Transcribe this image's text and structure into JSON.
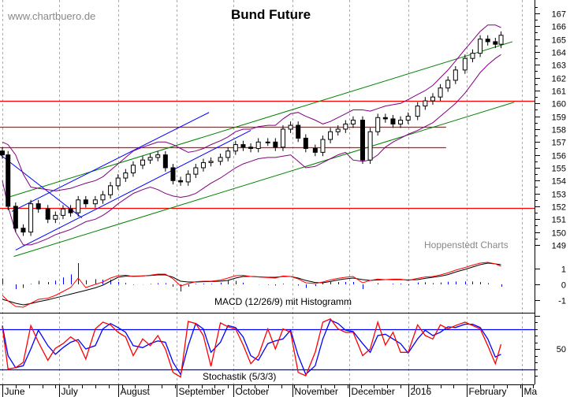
{
  "header": {
    "title": "Bund Future",
    "watermark": "www.chartbuero.de",
    "credit": "Hoppenstedt Charts"
  },
  "colors": {
    "candle": "#000000",
    "bands": "#800080",
    "trend_green": "#008000",
    "trend_blue": "#0000ff",
    "horizontal_red": "#ff0000",
    "macd": "#ff0000",
    "signal": "#000000",
    "histogram": "#0000ff",
    "stoch_k": "#ff0000",
    "stoch_d": "#0000ff",
    "grid": "#aaaaaa"
  },
  "chart_data": [
    {
      "type": "candlestick",
      "title": "Bund Future",
      "ylim": [
        148,
        167.5
      ],
      "y_ticks": [
        "167",
        "166",
        "165",
        "164",
        "163",
        "162",
        "161",
        "160",
        "159",
        "158",
        "157",
        "156",
        "155",
        "154",
        "153",
        "152",
        "151",
        "150",
        "149"
      ],
      "x_months": [
        "June",
        "July",
        "August",
        "September",
        "October",
        "November",
        "December",
        "2016",
        "February",
        "Ma"
      ],
      "grid": "vertical dashed at month starts",
      "dates": [
        "2015-06-01",
        "2015-06-04",
        "2015-06-08",
        "2015-06-12",
        "2015-06-16",
        "2015-06-20",
        "2015-06-25",
        "2015-06-29",
        "2015-07-03",
        "2015-07-07",
        "2015-07-11",
        "2015-07-15",
        "2015-07-20",
        "2015-07-24",
        "2015-07-28",
        "2015-08-01",
        "2015-08-05",
        "2015-08-09",
        "2015-08-14",
        "2015-08-18",
        "2015-08-22",
        "2015-08-26",
        "2015-08-30",
        "2015-09-03",
        "2015-09-07",
        "2015-09-11",
        "2015-09-15",
        "2015-09-19",
        "2015-09-24",
        "2015-09-28",
        "2015-10-02",
        "2015-10-06",
        "2015-10-10",
        "2015-10-14",
        "2015-10-19",
        "2015-10-23",
        "2015-10-27",
        "2015-10-31",
        "2015-11-04",
        "2015-11-08",
        "2015-11-13",
        "2015-11-17",
        "2015-11-21",
        "2015-11-25",
        "2015-11-29",
        "2015-12-03",
        "2015-12-08",
        "2015-12-12",
        "2015-12-16",
        "2015-12-20",
        "2015-12-24",
        "2015-12-28",
        "2016-01-01",
        "2016-01-06",
        "2016-01-10",
        "2016-01-14",
        "2016-01-18",
        "2016-01-22",
        "2016-01-26",
        "2016-01-31",
        "2016-02-04",
        "2016-02-08",
        "2016-02-12",
        "2016-02-16",
        "2016-02-19"
      ],
      "close": [
        156.0,
        152.0,
        150.3,
        150.0,
        152.2,
        151.8,
        151.0,
        151.3,
        151.8,
        151.5,
        152.5,
        152.2,
        152.5,
        152.9,
        153.6,
        154.2,
        154.6,
        155.2,
        155.6,
        155.8,
        156.0,
        155.0,
        154.0,
        153.9,
        154.5,
        155.0,
        155.4,
        155.5,
        155.8,
        156.3,
        156.8,
        156.6,
        156.5,
        157.0,
        157.0,
        156.6,
        158.0,
        158.3,
        157.3,
        156.5,
        156.2,
        157.2,
        157.8,
        158.0,
        158.4,
        158.7,
        155.6,
        157.8,
        158.9,
        158.8,
        158.4,
        158.7,
        159.0,
        159.8,
        160.2,
        160.5,
        161.2,
        161.8,
        162.6,
        163.5,
        163.9,
        165.0,
        164.8,
        164.6,
        165.3
      ],
      "band_upper": [
        157.0,
        156.8,
        156.0,
        154.5,
        153.5,
        153.4,
        153.3,
        153.2,
        153.3,
        153.4,
        153.6,
        153.8,
        154.0,
        154.3,
        154.8,
        155.3,
        155.8,
        156.3,
        156.6,
        156.8,
        157.0,
        157.0,
        156.8,
        156.5,
        156.2,
        156.3,
        156.5,
        156.8,
        157.1,
        157.4,
        157.8,
        158.0,
        158.0,
        158.2,
        158.3,
        158.3,
        158.8,
        159.2,
        159.3,
        159.0,
        158.7,
        158.4,
        158.6,
        158.9,
        159.2,
        159.5,
        159.5,
        159.4,
        159.6,
        159.8,
        159.9,
        160.0,
        160.3,
        160.7,
        161.0,
        161.4,
        162.0,
        162.6,
        163.3,
        164.2,
        164.9,
        165.6,
        166.1,
        166.1,
        165.9
      ],
      "band_lower": [
        154.0,
        152.0,
        150.0,
        149.0,
        149.0,
        149.2,
        149.5,
        149.8,
        150.0,
        150.2,
        150.5,
        150.8,
        151.0,
        151.3,
        151.7,
        152.2,
        152.6,
        153.0,
        153.3,
        153.5,
        153.3,
        153.0,
        152.8,
        152.7,
        152.8,
        153.0,
        153.4,
        153.8,
        154.2,
        154.6,
        155.0,
        155.3,
        155.5,
        155.7,
        155.8,
        155.8,
        155.9,
        156.0,
        155.5,
        155.0,
        155.1,
        155.4,
        155.7,
        156.0,
        156.2,
        155.6,
        155.5,
        155.6,
        156.0,
        156.6,
        157.0,
        157.3,
        157.6,
        157.9,
        158.2,
        158.5,
        159.0,
        159.5,
        160.0,
        160.8,
        161.6,
        162.4,
        163.0,
        163.5,
        163.8
      ],
      "trend_lines": [
        {
          "color": "green",
          "from": [
            "2015-06-04",
            152.7
          ],
          "to": [
            "2016-02-25",
            164.8
          ]
        },
        {
          "color": "green",
          "from": [
            "2015-06-07",
            148.1
          ],
          "to": [
            "2016-02-26",
            160.1
          ]
        },
        {
          "color": "blue",
          "from": [
            "2015-06-06",
            151.6
          ],
          "to": [
            "2015-09-18",
            159.3
          ]
        },
        {
          "color": "blue",
          "from": [
            "2015-06-08",
            148.6
          ],
          "to": [
            "2015-10-10",
            157.9
          ]
        },
        {
          "color": "blue",
          "from": [
            "2015-05-31",
            156.0
          ],
          "to": [
            "2015-07-13",
            151.1
          ]
        }
      ],
      "horizontal_lines": [
        {
          "value": 160.2,
          "until": "2016-03-10"
        },
        {
          "value": 158.2,
          "until": "2016-01-21"
        },
        {
          "value": 156.6,
          "until": "2016-01-21"
        },
        {
          "value": 151.9,
          "until": "2016-03-10"
        }
      ]
    },
    {
      "type": "line",
      "title": "MACD (12/26/9) mit Histogramm",
      "ylim": [
        -1.9,
        1.9
      ],
      "y_ticks": [
        "1",
        "0",
        "-1"
      ],
      "macd": [
        -0.7,
        -1.05,
        -1.4,
        -1.45,
        -1.2,
        -0.95,
        -0.88,
        -0.7,
        -0.45,
        -0.2,
        0.4,
        -0.2,
        0.0,
        0.15,
        0.4,
        0.55,
        0.58,
        0.5,
        0.53,
        0.58,
        0.65,
        0.65,
        0.35,
        -0.1,
        0.05,
        0.17,
        0.2,
        0.2,
        0.27,
        0.4,
        0.55,
        0.57,
        0.5,
        0.47,
        0.43,
        0.4,
        0.53,
        0.5,
        0.35,
        0.1,
        0.05,
        0.15,
        0.28,
        0.38,
        0.45,
        0.5,
        0.1,
        0.25,
        0.33,
        0.3,
        0.33,
        0.33,
        0.25,
        0.38,
        0.47,
        0.5,
        0.6,
        0.73,
        0.9,
        1.07,
        1.22,
        1.35,
        1.4,
        1.3,
        1.15
      ],
      "signal": [
        -0.95,
        -1.05,
        -1.2,
        -1.3,
        -1.22,
        -1.1,
        -0.98,
        -0.86,
        -0.74,
        -0.62,
        -0.5,
        -0.38,
        -0.22,
        -0.05,
        0.2,
        0.45,
        0.52,
        0.52,
        0.54,
        0.56,
        0.6,
        0.6,
        0.45,
        0.2,
        0.15,
        0.15,
        0.17,
        0.18,
        0.2,
        0.25,
        0.4,
        0.5,
        0.5,
        0.48,
        0.45,
        0.45,
        0.5,
        0.5,
        0.4,
        0.25,
        0.12,
        0.1,
        0.18,
        0.28,
        0.35,
        0.4,
        0.3,
        0.25,
        0.28,
        0.3,
        0.3,
        0.3,
        0.28,
        0.3,
        0.38,
        0.45,
        0.52,
        0.62,
        0.78,
        0.95,
        1.1,
        1.25,
        1.35,
        1.3,
        1.25
      ]
    },
    {
      "type": "line",
      "title": "Stochastik (5/3/3)",
      "ylim": [
        0,
        100
      ],
      "y_ticks": [
        "50"
      ],
      "reference_lines": [
        80,
        20
      ],
      "k": [
        83,
        20,
        22,
        30,
        85,
        60,
        33,
        51,
        58,
        68,
        60,
        35,
        80,
        90,
        86,
        75,
        68,
        40,
        65,
        55,
        70,
        50,
        15,
        8,
        91,
        88,
        70,
        24,
        89,
        83,
        80,
        56,
        28,
        40,
        80,
        50,
        80,
        75,
        15,
        10,
        45,
        90,
        95,
        80,
        75,
        75,
        40,
        50,
        90,
        56,
        75,
        45,
        45,
        86,
        70,
        65,
        86,
        80,
        85,
        90,
        85,
        80,
        55,
        28,
        57
      ],
      "d": [
        85,
        40,
        22,
        25,
        50,
        78,
        55,
        42,
        52,
        60,
        64,
        50,
        55,
        80,
        88,
        82,
        75,
        55,
        52,
        58,
        62,
        60,
        30,
        12,
        55,
        88,
        80,
        45,
        60,
        85,
        82,
        68,
        40,
        33,
        58,
        62,
        65,
        78,
        40,
        12,
        25,
        65,
        93,
        88,
        78,
        76,
        58,
        45,
        70,
        72,
        65,
        58,
        44,
        65,
        78,
        70,
        75,
        83,
        82,
        87,
        87,
        82,
        65,
        38,
        42
      ]
    }
  ]
}
